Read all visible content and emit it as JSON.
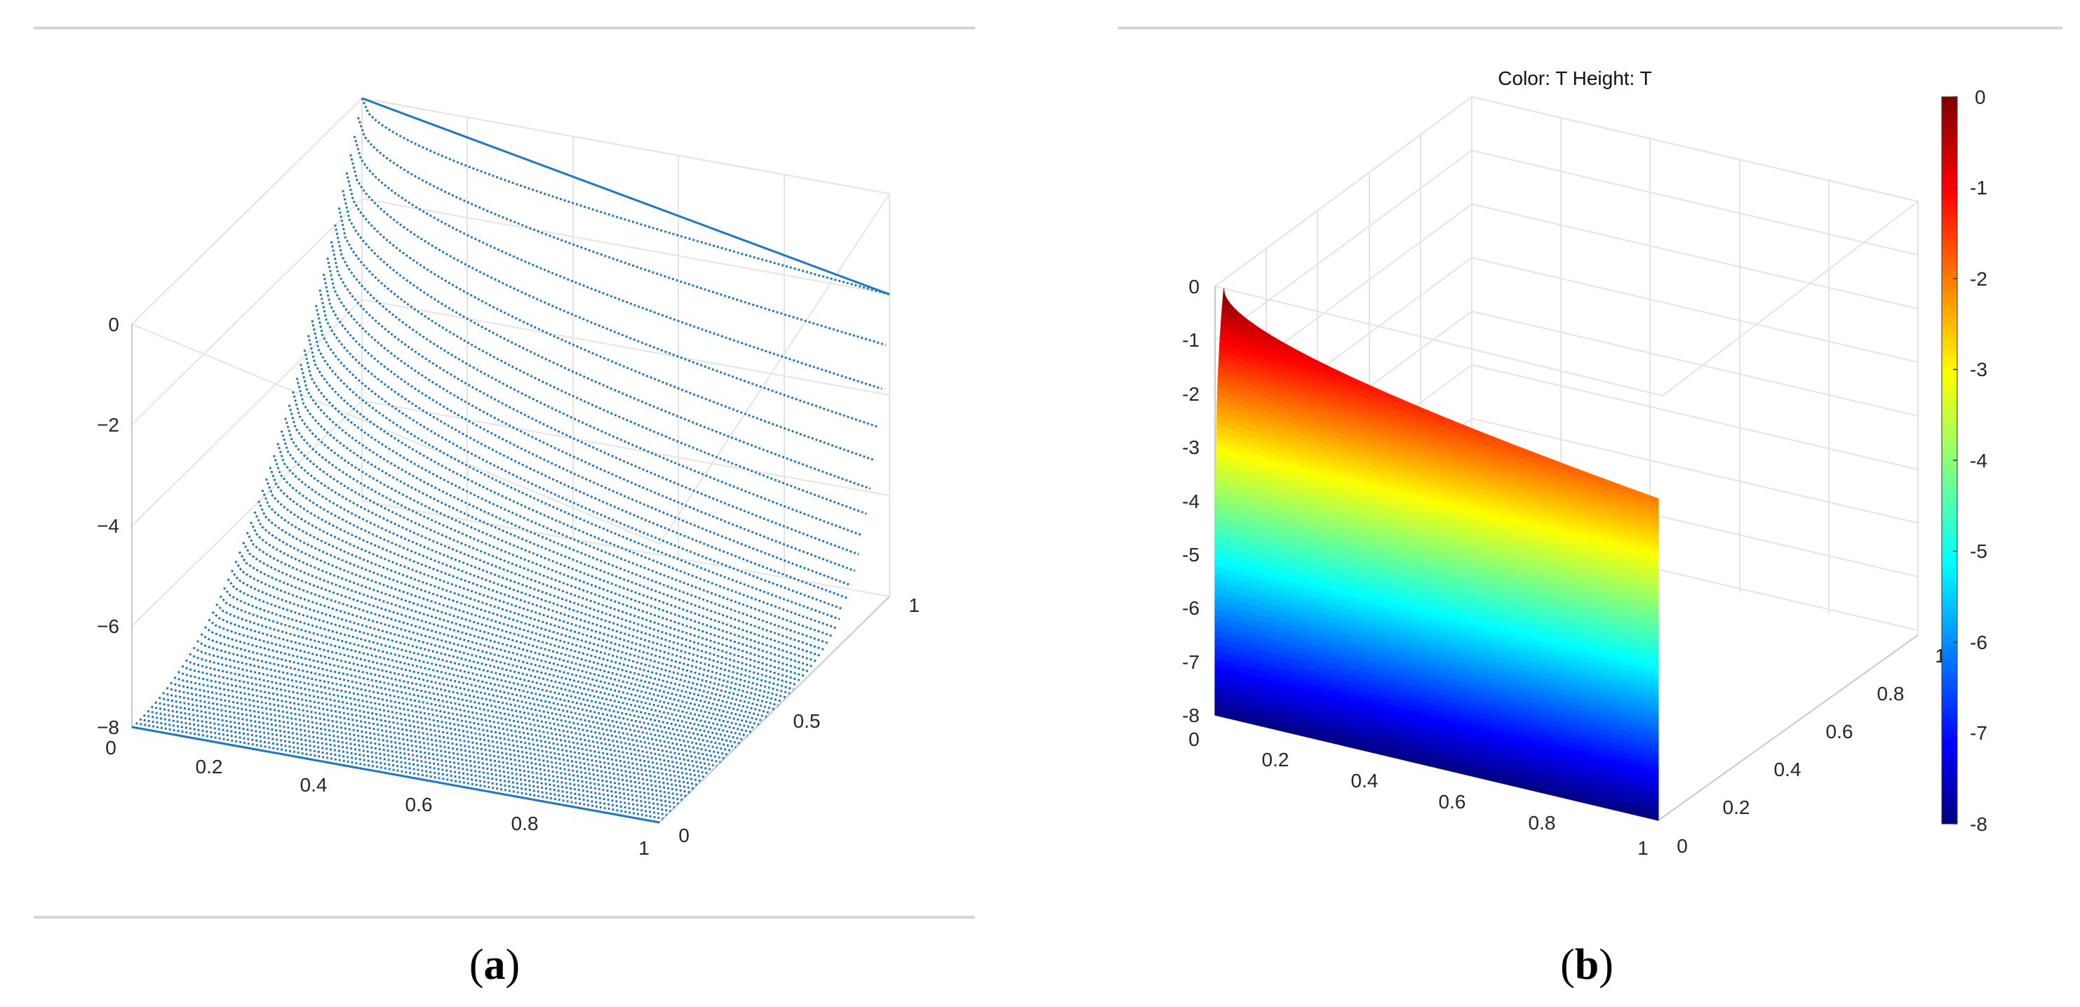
{
  "figure": {
    "panel_a": {
      "caption": "a"
    },
    "panel_b": {
      "caption": "b",
      "title": "Color: T  Height: T"
    }
  },
  "colors": {
    "series": "#1f77c2",
    "colorbar": [
      "#00008f",
      "#0000ff",
      "#00ffff",
      "#ffff00",
      "#ff0000",
      "#800000"
    ]
  },
  "chart_data": [
    {
      "type": "scatter",
      "title": "",
      "xlabel": "",
      "ylabel": "",
      "zlabel": "",
      "x_ticks": [
        "0",
        "0.2",
        "0.4",
        "0.6",
        "0.8",
        "1"
      ],
      "y_ticks": [
        "0",
        "0.5",
        "1"
      ],
      "z_ticks": [
        "−8",
        "−6",
        "−4",
        "−2",
        "0"
      ],
      "xlim": [
        0,
        1
      ],
      "ylim": [
        0,
        1
      ],
      "zlim": [
        -8,
        0
      ],
      "grid": true,
      "series": [
        {
          "description_values": "sampled points z = T(x, y) for y in [0,1], x in [0,1]",
          "x": [
            0,
            0.2,
            0.4,
            0.6,
            0.8,
            1
          ],
          "y_at_x0": [
            -8,
            -6.3,
            -4.2,
            -2.5,
            -1.0,
            0
          ],
          "y_at_x1": [
            -8,
            -8,
            -8,
            -8,
            -8,
            -2
          ]
        }
      ]
    },
    {
      "type": "surface",
      "title": "Color: T  Height: T",
      "xlabel": "",
      "ylabel": "",
      "zlabel": "",
      "x_ticks": [
        "0",
        "0.2",
        "0.4",
        "0.6",
        "0.8",
        "1"
      ],
      "y_ticks": [
        "0",
        "0.2",
        "0.4",
        "0.6",
        "0.8",
        "1"
      ],
      "z_ticks": [
        "-8",
        "-7",
        "-6",
        "-5",
        "-4",
        "-3",
        "-2",
        "-1",
        "0"
      ],
      "colorbar_ticks": [
        "0",
        "-1",
        "-2",
        "-3",
        "-4",
        "-5",
        "-6",
        "-7",
        "-8"
      ],
      "xlim": [
        0,
        1
      ],
      "ylim": [
        0,
        1
      ],
      "zlim": [
        -8,
        0
      ],
      "colorbar_range": [
        -8,
        0
      ],
      "colormap": "jet",
      "grid": true
    }
  ]
}
